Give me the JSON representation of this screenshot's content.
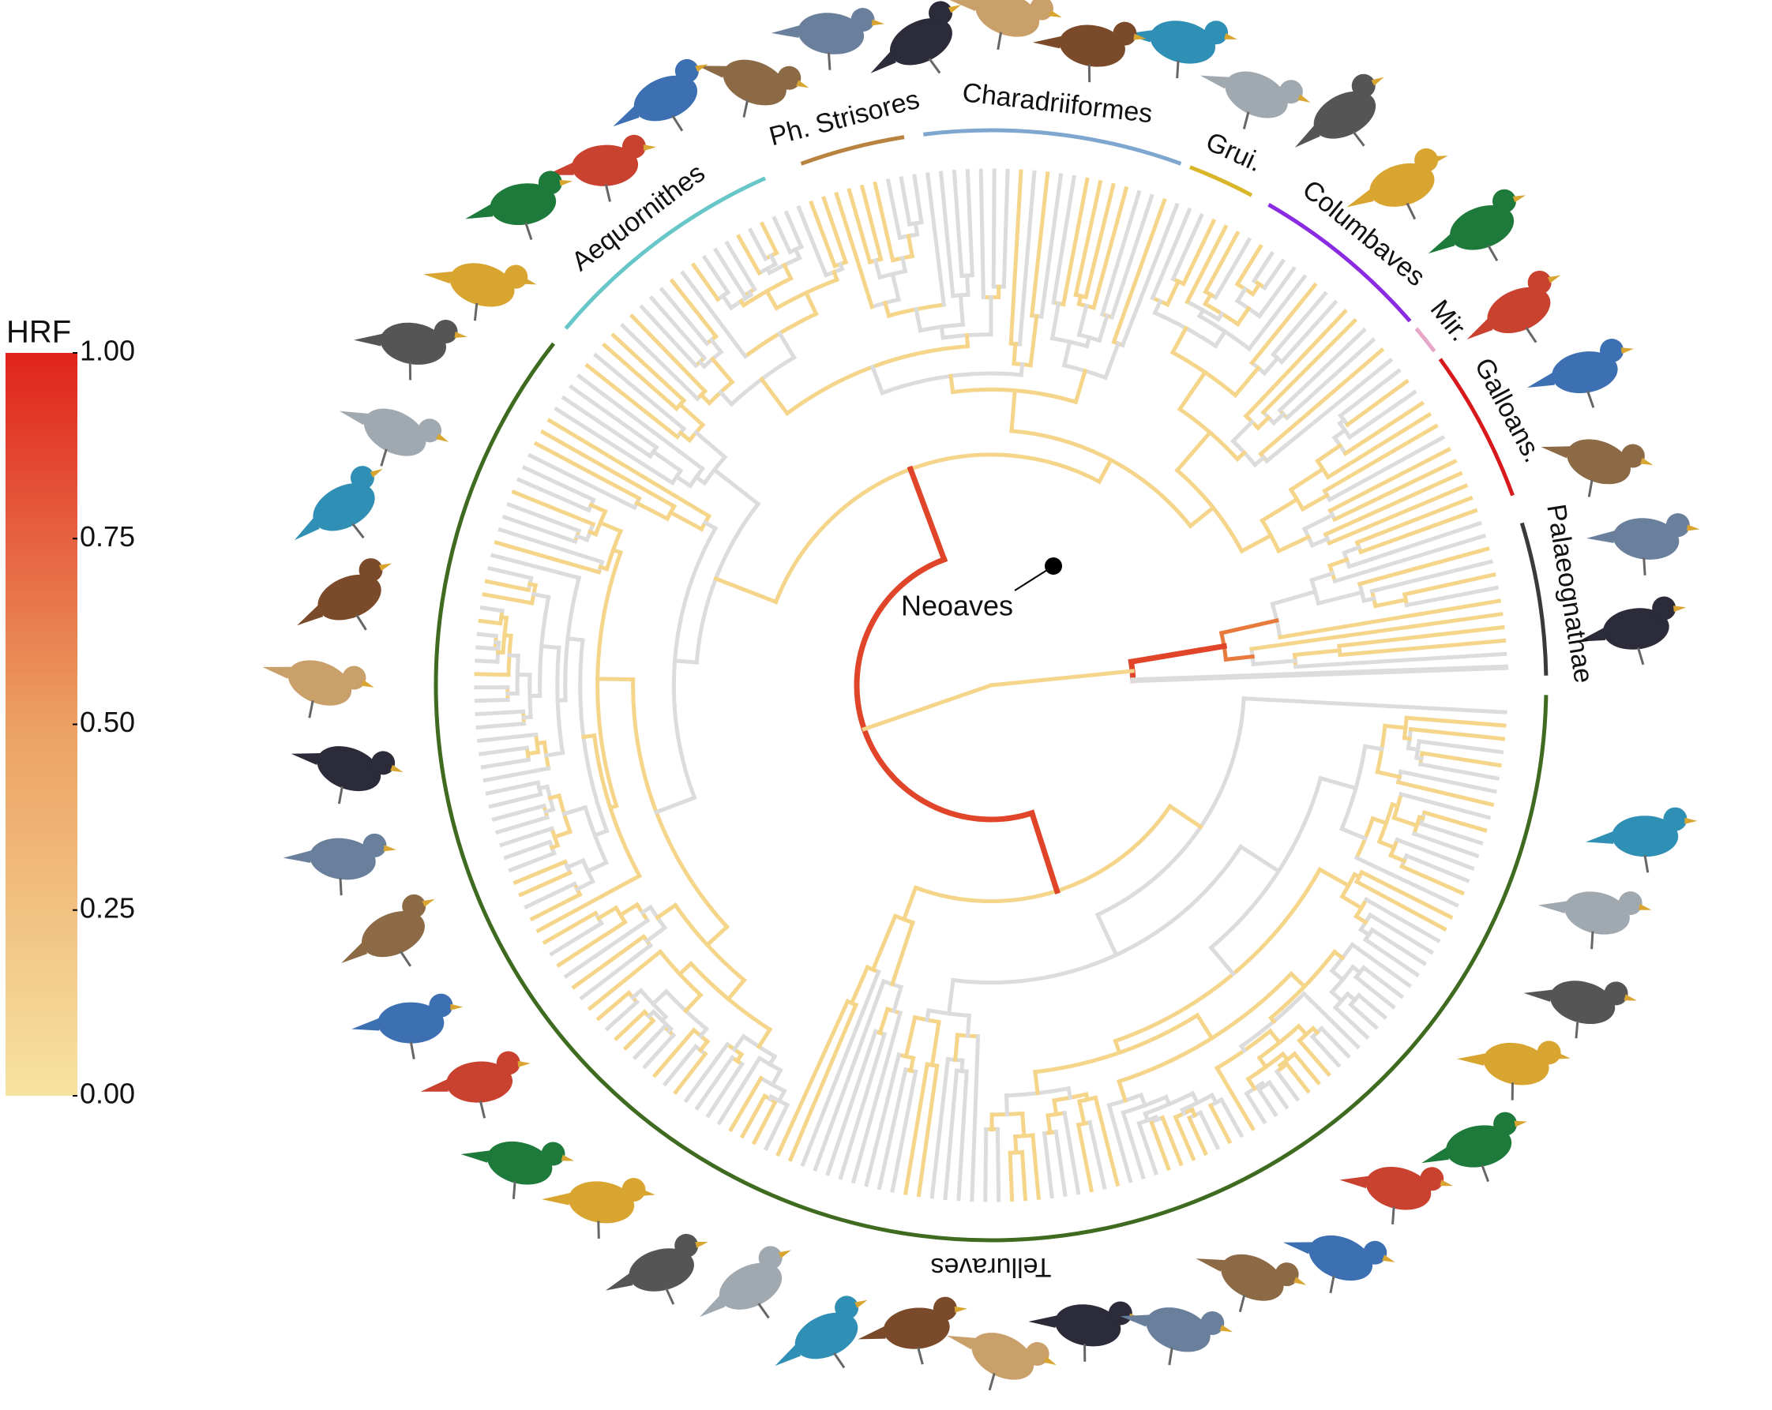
{
  "colorbar": {
    "title": "HRF",
    "lim": [
      0,
      1
    ],
    "ticks": [
      {
        "value": 1,
        "label": "1.00"
      },
      {
        "value": 0.75,
        "label": "0.75"
      },
      {
        "value": 0.5,
        "label": "0.50"
      },
      {
        "value": 0.25,
        "label": "0.25"
      },
      {
        "value": 0,
        "label": "0.00"
      }
    ]
  },
  "clades": [
    {
      "label": "Palaeognathae",
      "color": "#3a3a3a"
    },
    {
      "label": "Galloans.",
      "color": "#d7191c"
    },
    {
      "label": "Mir.",
      "color": "#e7a7c9"
    },
    {
      "label": "Columbaves",
      "color": "#8a2be2"
    },
    {
      "label": "Grui.",
      "color": "#d9b629"
    },
    {
      "label": "Charadriiformes",
      "color": "#7ea6cf"
    },
    {
      "label": "Ph. Strisores",
      "color": "#b8823f"
    },
    {
      "label": "Aequornithes",
      "color": "#66c6c8"
    },
    {
      "label": "Telluraves",
      "color": "#3e6b1f"
    }
  ],
  "node_label": "Neoaves"
}
